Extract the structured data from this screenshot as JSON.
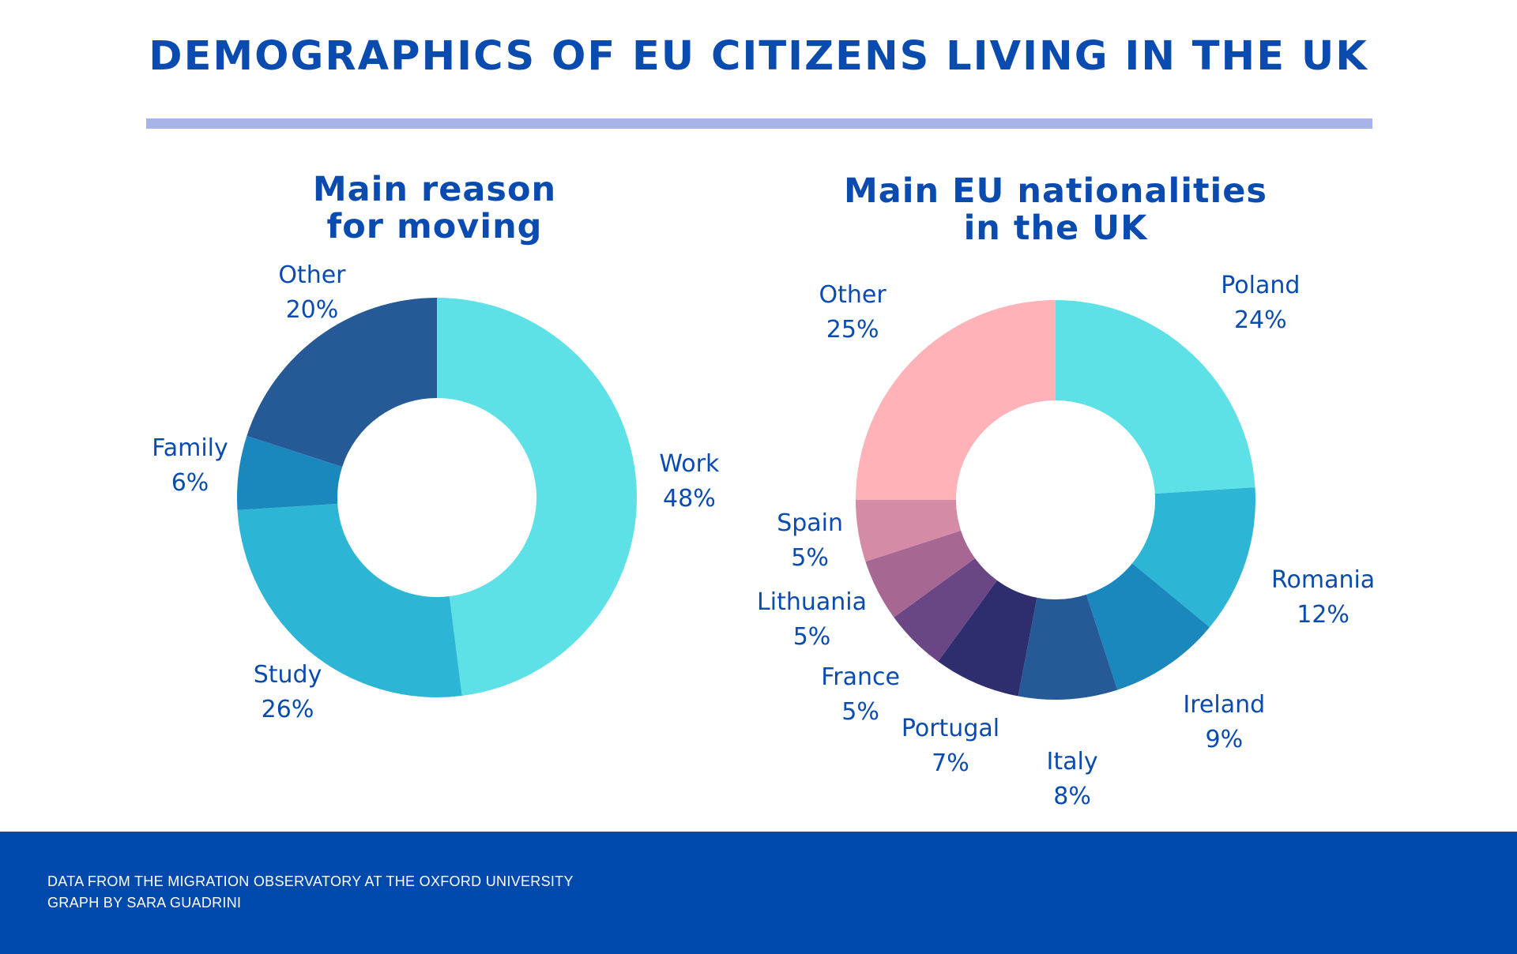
{
  "title": "DEMOGRAPHICS OF EU CITIZENS LIVING IN THE UK",
  "footer": {
    "source": "DATA FROM THE MIGRATION OBSERVATORY AT THE OXFORD UNIVERSITY",
    "credit": "GRAPH BY SARA GUADRINI"
  },
  "colors": {
    "title": "#0a4bb0",
    "rule": "#a8b3e9",
    "footer_bg": "#004aad"
  },
  "chart_data": [
    {
      "type": "pie",
      "variant": "donut",
      "title_lines": [
        "Main reason",
        "for moving"
      ],
      "slices": [
        {
          "label": "Work",
          "value": 48,
          "value_label": "48%",
          "color": "#5de1e6"
        },
        {
          "label": "Study",
          "value": 26,
          "value_label": "26%",
          "color": "#2db5d6"
        },
        {
          "label": "Family",
          "value": 6,
          "value_label": "6%",
          "color": "#1a88bd"
        },
        {
          "label": "Other",
          "value": 20,
          "value_label": "20%",
          "color": "#265a96"
        }
      ]
    },
    {
      "type": "pie",
      "variant": "donut",
      "title_lines": [
        "Main EU nationalities",
        "in the UK"
      ],
      "slices": [
        {
          "label": "Poland",
          "value": 24,
          "value_label": "24%",
          "color": "#5de1e6"
        },
        {
          "label": "Romania",
          "value": 12,
          "value_label": "12%",
          "color": "#2db5d6"
        },
        {
          "label": "Ireland",
          "value": 9,
          "value_label": "9%",
          "color": "#1a88bd"
        },
        {
          "label": "Italy",
          "value": 8,
          "value_label": "8%",
          "color": "#265a96"
        },
        {
          "label": "Portugal",
          "value": 7,
          "value_label": "7%",
          "color": "#2e2e6e"
        },
        {
          "label": "France",
          "value": 5,
          "value_label": "5%",
          "color": "#6b4684"
        },
        {
          "label": "Lithuania",
          "value": 5,
          "value_label": "5%",
          "color": "#a66793"
        },
        {
          "label": "Spain",
          "value": 5,
          "value_label": "5%",
          "color": "#d58aa5"
        },
        {
          "label": "Other",
          "value": 25,
          "value_label": "25%",
          "color": "#ffb2b8"
        }
      ]
    }
  ]
}
